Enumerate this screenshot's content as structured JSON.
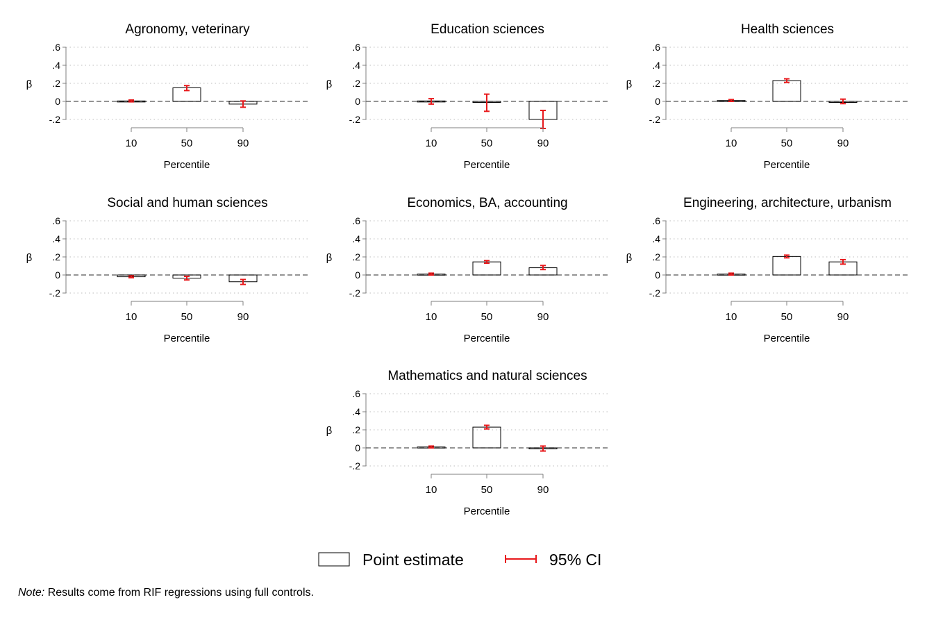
{
  "chart_data": [
    {
      "type": "bar",
      "title": "Agronomy, veterinary",
      "xlabel": "Percentile",
      "ylabel": "β",
      "categories": [
        "10",
        "50",
        "90"
      ],
      "values": [
        0.005,
        0.15,
        -0.03
      ],
      "ci_low": [
        -0.005,
        0.12,
        -0.065
      ],
      "ci_high": [
        0.015,
        0.175,
        0.005
      ],
      "ylim": [
        -0.2,
        0.6
      ],
      "yticks": [
        "-.2",
        "0",
        ".2",
        ".4",
        ".6"
      ]
    },
    {
      "type": "bar",
      "title": "Education sciences",
      "xlabel": "Percentile",
      "ylabel": "β",
      "categories": [
        "10",
        "50",
        "90"
      ],
      "values": [
        0.005,
        -0.01,
        -0.2
      ],
      "ci_low": [
        -0.03,
        -0.11,
        -0.3
      ],
      "ci_high": [
        0.03,
        0.08,
        -0.1
      ],
      "ylim": [
        -0.2,
        0.6
      ],
      "yticks": [
        "-.2",
        "0",
        ".2",
        ".4",
        ".6"
      ]
    },
    {
      "type": "bar",
      "title": "Health sciences",
      "xlabel": "Percentile",
      "ylabel": "β",
      "categories": [
        "10",
        "50",
        "90"
      ],
      "values": [
        0.01,
        0.23,
        0.0
      ],
      "ci_low": [
        0.0,
        0.21,
        -0.025
      ],
      "ci_high": [
        0.02,
        0.25,
        0.025
      ],
      "ylim": [
        -0.2,
        0.6
      ],
      "yticks": [
        "-.2",
        "0",
        ".2",
        ".4",
        ".6"
      ]
    },
    {
      "type": "bar",
      "title": "Social and human sciences",
      "xlabel": "Percentile",
      "ylabel": "β",
      "categories": [
        "10",
        "50",
        "90"
      ],
      "values": [
        -0.02,
        -0.035,
        -0.075
      ],
      "ci_low": [
        -0.03,
        -0.055,
        -0.105
      ],
      "ci_high": [
        -0.01,
        -0.015,
        -0.05
      ],
      "ylim": [
        -0.2,
        0.6
      ],
      "yticks": [
        "-.2",
        "0",
        ".2",
        ".4",
        ".6"
      ]
    },
    {
      "type": "bar",
      "title": "Economics, BA, accounting",
      "xlabel": "Percentile",
      "ylabel": "β",
      "categories": [
        "10",
        "50",
        "90"
      ],
      "values": [
        0.01,
        0.145,
        0.08
      ],
      "ci_low": [
        0.0,
        0.13,
        0.06
      ],
      "ci_high": [
        0.02,
        0.16,
        0.105
      ],
      "ylim": [
        -0.2,
        0.6
      ],
      "yticks": [
        "-.2",
        "0",
        ".2",
        ".4",
        ".6"
      ]
    },
    {
      "type": "bar",
      "title": "Engineering, architecture, urbanism",
      "xlabel": "Percentile",
      "ylabel": "β",
      "categories": [
        "10",
        "50",
        "90"
      ],
      "values": [
        0.01,
        0.205,
        0.145
      ],
      "ci_low": [
        0.0,
        0.19,
        0.12
      ],
      "ci_high": [
        0.02,
        0.22,
        0.17
      ],
      "ylim": [
        -0.2,
        0.6
      ],
      "yticks": [
        "-.2",
        "0",
        ".2",
        ".4",
        ".6"
      ]
    },
    {
      "type": "bar",
      "title": "Mathematics and natural sciences",
      "xlabel": "Percentile",
      "ylabel": "β",
      "categories": [
        "10",
        "50",
        "90"
      ],
      "values": [
        0.01,
        0.23,
        -0.005
      ],
      "ci_low": [
        0.0,
        0.21,
        -0.035
      ],
      "ci_high": [
        0.02,
        0.25,
        0.02
      ],
      "ylim": [
        -0.2,
        0.6
      ],
      "yticks": [
        "-.2",
        "0",
        ".2",
        ".4",
        ".6"
      ]
    }
  ],
  "legend": {
    "point_estimate_label": "Point estimate",
    "ci_label": "95% CI"
  },
  "note": {
    "label": "Note:",
    "text": " Results come from RIF regressions using full controls."
  },
  "colors": {
    "ci": "#e8191c",
    "bar_stroke": "#000000",
    "axis": "#7f7f7f",
    "grid": "#bdbdbd",
    "zero_line": "#555555"
  }
}
